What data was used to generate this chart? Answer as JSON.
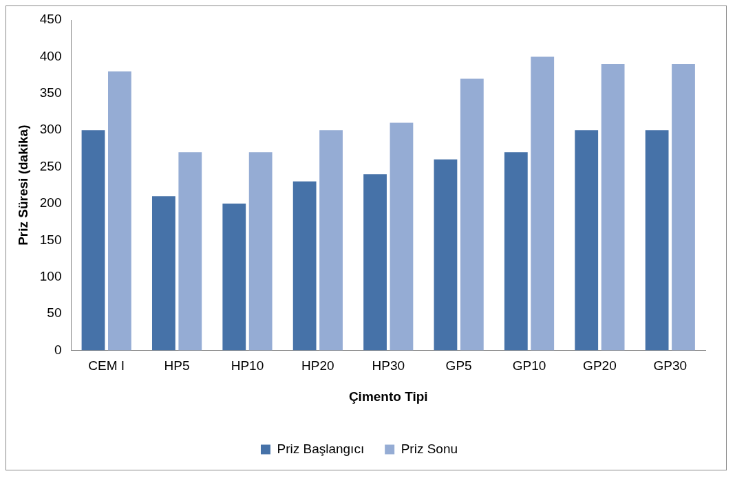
{
  "chart_data": {
    "type": "bar",
    "xlabel": "Çimento Tipi",
    "ylabel": "Priz Süresi (dakika)",
    "categories": [
      "CEM I",
      "HP5",
      "HP10",
      "HP20",
      "HP30",
      "GP5",
      "GP10",
      "GP20",
      "GP30"
    ],
    "series": [
      {
        "name": "Priz Başlangıcı",
        "color": "#4672a8",
        "values": [
          300,
          210,
          200,
          230,
          240,
          260,
          270,
          300,
          300
        ]
      },
      {
        "name": "Priz Sonu",
        "color": "#95acd4",
        "values": [
          380,
          270,
          270,
          300,
          310,
          370,
          400,
          390,
          390
        ]
      }
    ],
    "ylim": [
      0,
      450
    ],
    "yticks": [
      0,
      50,
      100,
      150,
      200,
      250,
      300,
      350,
      400,
      450
    ],
    "grid": false,
    "legend": "bottom"
  }
}
